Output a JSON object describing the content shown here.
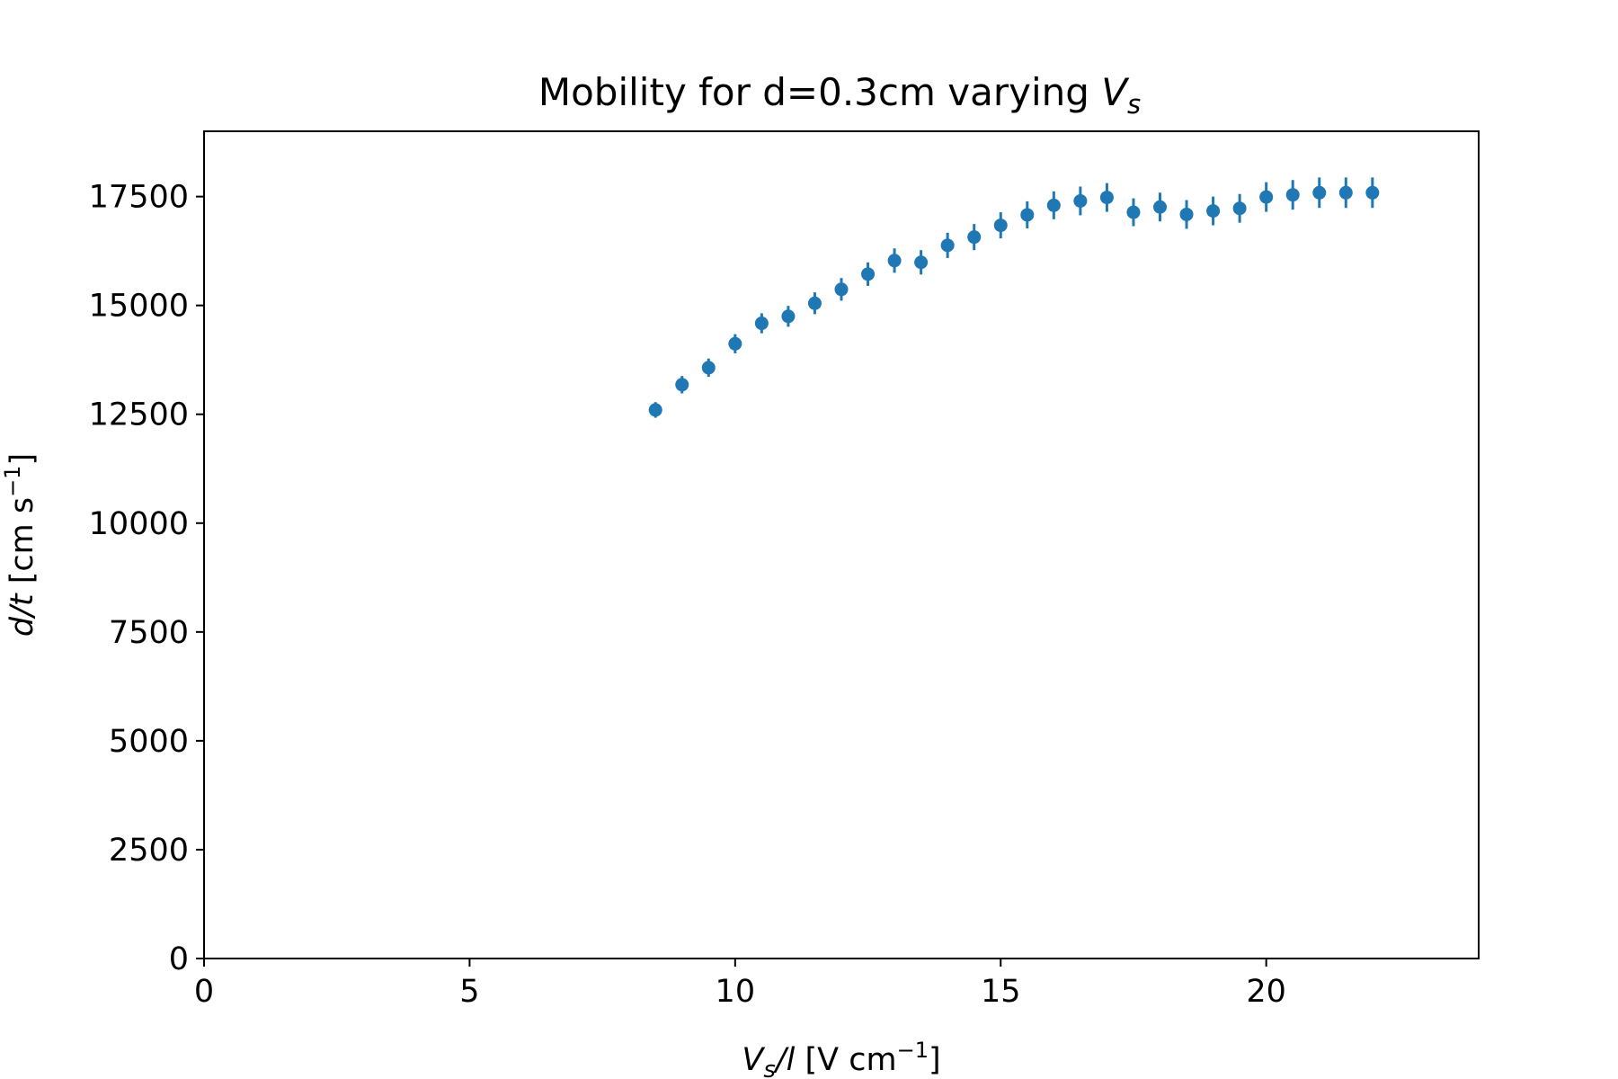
{
  "chart_data": {
    "type": "scatter",
    "title": "Mobility for d=0.3cm varying V_s",
    "title_parts": {
      "main": "Mobility for d=0.3cm varying ",
      "var": "V",
      "sub": "s"
    },
    "xlabel": "V_s/l [V cm^-1]",
    "xlabel_parts": {
      "var": "V",
      "sub": "s",
      "rest": "/l",
      "unit": " [V cm",
      "sup": "−1",
      "close": "]"
    },
    "ylabel": "d/t [cm s^-1]",
    "ylabel_parts": {
      "var": "d/t",
      "unit": " [cm s",
      "sup": "−1",
      "close": "]"
    },
    "xlim": [
      0,
      24
    ],
    "ylim": [
      0,
      19000
    ],
    "x_ticks": [
      0,
      5,
      10,
      15,
      20
    ],
    "x_tick_labels": [
      "0",
      "5",
      "10",
      "15",
      "20"
    ],
    "y_ticks": [
      0,
      2500,
      5000,
      7500,
      10000,
      12500,
      15000,
      17500
    ],
    "y_tick_labels": [
      "0",
      "2500",
      "5000",
      "7500",
      "10000",
      "12500",
      "15000",
      "17500"
    ],
    "grid": false,
    "legend": "none",
    "marker_color": "#1f77b4",
    "series": [
      {
        "x": [
          8.5,
          9.0,
          9.5,
          10.0,
          10.5,
          11.0,
          11.5,
          12.0,
          12.5,
          13.0,
          13.5,
          14.0,
          14.5,
          15.0,
          15.5,
          16.0,
          16.5,
          17.0,
          17.5,
          18.0,
          18.5,
          19.0,
          19.5,
          20.0,
          20.5,
          21.0,
          21.5,
          22.0
        ],
        "y": [
          12600,
          13180,
          13570,
          14120,
          14590,
          14750,
          15050,
          15370,
          15720,
          16030,
          15990,
          16380,
          16570,
          16840,
          17080,
          17300,
          17400,
          17480,
          17140,
          17260,
          17090,
          17170,
          17230,
          17490,
          17540,
          17590,
          17590,
          17590
        ],
        "yerr": [
          180,
          200,
          210,
          220,
          230,
          240,
          250,
          260,
          270,
          280,
          280,
          290,
          300,
          300,
          310,
          320,
          330,
          330,
          320,
          330,
          330,
          330,
          330,
          340,
          340,
          350,
          350,
          350
        ]
      }
    ]
  }
}
